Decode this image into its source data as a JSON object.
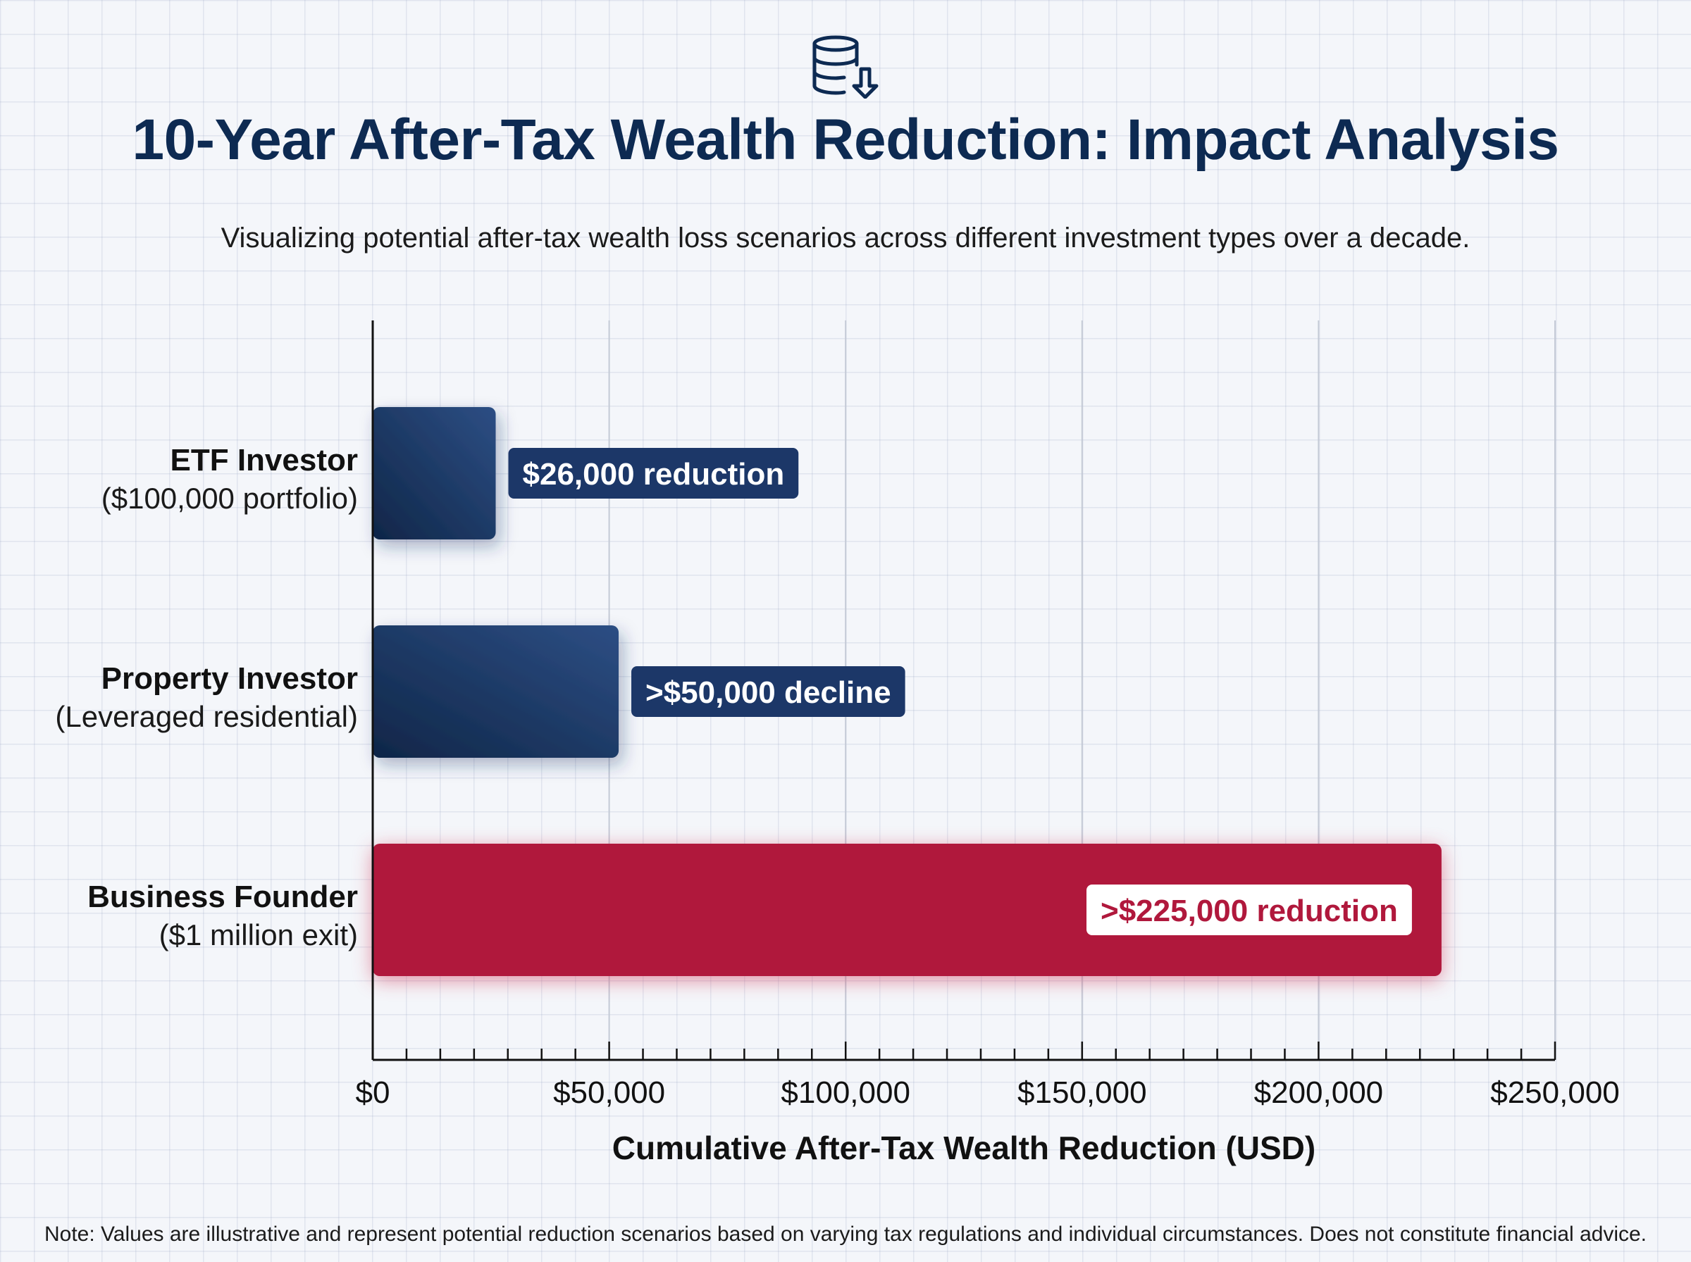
{
  "header": {
    "icon": "database-download-icon",
    "title": "10-Year After-Tax Wealth Reduction: Impact Analysis",
    "subtitle": "Visualizing potential after-tax wealth loss scenarios across different investment types over a decade."
  },
  "footnote": "Note: Values are illustrative and represent potential reduction scenarios based on varying tax regulations and individual circumstances. Does not constitute financial advice.",
  "colors": {
    "navy": "#1c3768",
    "navy_dark": "#0f2648",
    "crimson": "#b0183c",
    "title": "#0d2a52"
  },
  "chart_data": {
    "type": "bar",
    "orientation": "horizontal",
    "categories": [
      {
        "name": "ETF Investor",
        "detail": "($100,000 portfolio)"
      },
      {
        "name": "Property Investor",
        "detail": "(Leveraged residential)"
      },
      {
        "name": "Business Founder",
        "detail": "($1 million exit)"
      }
    ],
    "values": [
      26000,
      52000,
      226000
    ],
    "data_labels": [
      "$26,000 reduction",
      ">$50,000 decline",
      ">$225,000 reduction"
    ],
    "bar_colors": [
      "#1c3768",
      "#1c3768",
      "#b0183c"
    ],
    "xlim": [
      0,
      250000
    ],
    "xticks": [
      0,
      50000,
      100000,
      150000,
      200000,
      250000
    ],
    "xtick_labels": [
      "$0",
      "$50,000",
      "$100,000",
      "$150,000",
      "$200,000",
      "$250,000"
    ],
    "minor_ticks_per_major": 7,
    "xlabel": "Cumulative After-Tax Wealth Reduction (USD)",
    "grid": true
  }
}
